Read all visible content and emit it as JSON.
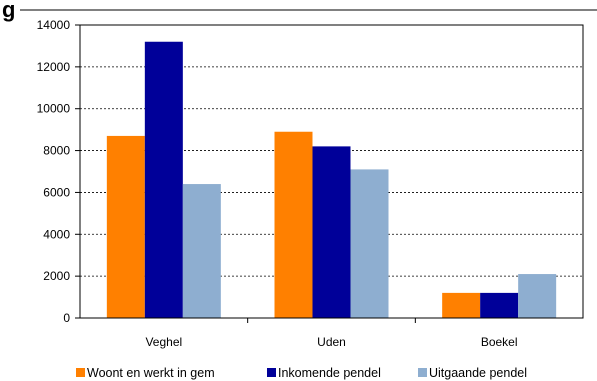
{
  "partial_title": "g",
  "chart_data": {
    "type": "bar",
    "categories": [
      "Veghel",
      "Uden",
      "Boekel"
    ],
    "series": [
      {
        "name": "Woont en werkt in gem",
        "color": "#FF8000",
        "values": [
          8700,
          8900,
          1200
        ]
      },
      {
        "name": "Inkomende pendel",
        "color": "#000099",
        "values": [
          13200,
          8200,
          1200
        ]
      },
      {
        "name": "Uitgaande pendel",
        "color": "#8EAED0",
        "values": [
          6400,
          7100,
          2100
        ]
      }
    ],
    "yticks": [
      "0",
      "2000",
      "4000",
      "6000",
      "8000",
      "10000",
      "12000",
      "14000"
    ],
    "ylim": [
      0,
      14000
    ],
    "grid": true,
    "legend": "bottom",
    "title": "",
    "xlabel": "",
    "ylabel": ""
  }
}
